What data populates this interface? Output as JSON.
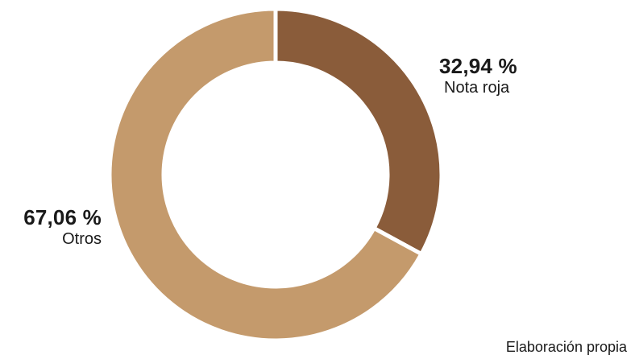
{
  "chart_data": {
    "type": "pie",
    "variant": "donut",
    "categories": [
      "Nota roja",
      "Otros"
    ],
    "values": [
      32.94,
      67.06
    ],
    "value_labels": [
      "32,94 %",
      "67,06 %"
    ],
    "colors": [
      "#8a5c3a",
      "#c49a6c"
    ],
    "start_angle": "12 o'clock, clockwise",
    "legend": "none (direct labels)"
  },
  "source": "Elaboración propia"
}
